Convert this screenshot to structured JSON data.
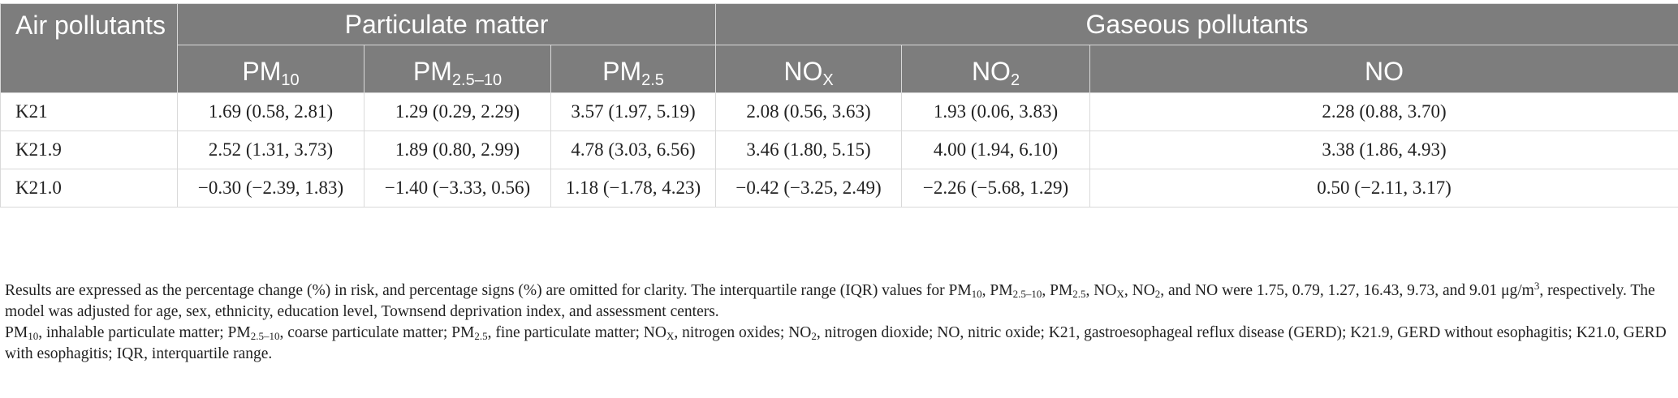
{
  "table": {
    "row_header": "Air pollutants",
    "groups": [
      "Particulate matter",
      "Gaseous pollutants"
    ],
    "columns": [
      {
        "base": "PM",
        "sub": "10"
      },
      {
        "base": "PM",
        "sub": "2.5–10"
      },
      {
        "base": "PM",
        "sub": "2.5"
      },
      {
        "base": "NO",
        "sub": "X"
      },
      {
        "base": "NO",
        "sub": "2"
      },
      {
        "base": "NO",
        "sub": ""
      }
    ],
    "rows": [
      {
        "label": "K21",
        "values": [
          "1.69 (0.58, 2.81)",
          "1.29 (0.29, 2.29)",
          "3.57 (1.97, 5.19)",
          "2.08 (0.56, 3.63)",
          "1.93 (0.06, 3.83)",
          "2.28 (0.88, 3.70)"
        ]
      },
      {
        "label": "K21.9",
        "values": [
          "2.52 (1.31, 3.73)",
          "1.89 (0.80, 2.99)",
          "4.78 (3.03, 6.56)",
          "3.46 (1.80, 5.15)",
          "4.00 (1.94, 6.10)",
          "3.38 (1.86, 4.93)"
        ]
      },
      {
        "label": "K21.0",
        "values": [
          "−0.30 (−2.39, 1.83)",
          "−1.40 (−3.33, 0.56)",
          "1.18 (−1.78, 4.23)",
          "−0.42 (−3.25, 2.49)",
          "−2.26 (−5.68, 1.29)",
          "0.50 (−2.11, 3.17)"
        ]
      }
    ]
  },
  "footnote": {
    "p1": {
      "a": "Results are expressed as the percentage change (%) in risk, and percentage signs (%) are omitted for clarity. The interquartile range (IQR) values for PM",
      "s1": "10",
      "b": ", PM",
      "s2": "2.5–10",
      "c": ", PM",
      "s3": "2.5",
      "d": ", NO",
      "s4": "X",
      "e": ", NO",
      "s5": "2",
      "f": ", and NO were 1.75, 0.79, 1.27, 16.43, 9.73, and 9.01 μg/m",
      "sup": "3",
      "g": ", respectively. The model was adjusted for age, sex, ethnicity, education level, Townsend deprivation index, and assessment centers."
    },
    "p2": {
      "a": "PM",
      "s1": "10",
      "b": ", inhalable particulate matter; PM",
      "s2": "2.5–10",
      "c": ", coarse particulate matter; PM",
      "s3": "2.5",
      "d": ", fine particulate matter; NO",
      "s4": "X",
      "e": ", nitrogen oxides; NO",
      "s5": "2",
      "f": ", nitrogen dioxide; NO, nitric oxide; K21, gastroesophageal reflux disease (GERD); K21.9, GERD without esophagitis; K21.0, GERD with esophagitis; IQR, interquartile range."
    }
  }
}
